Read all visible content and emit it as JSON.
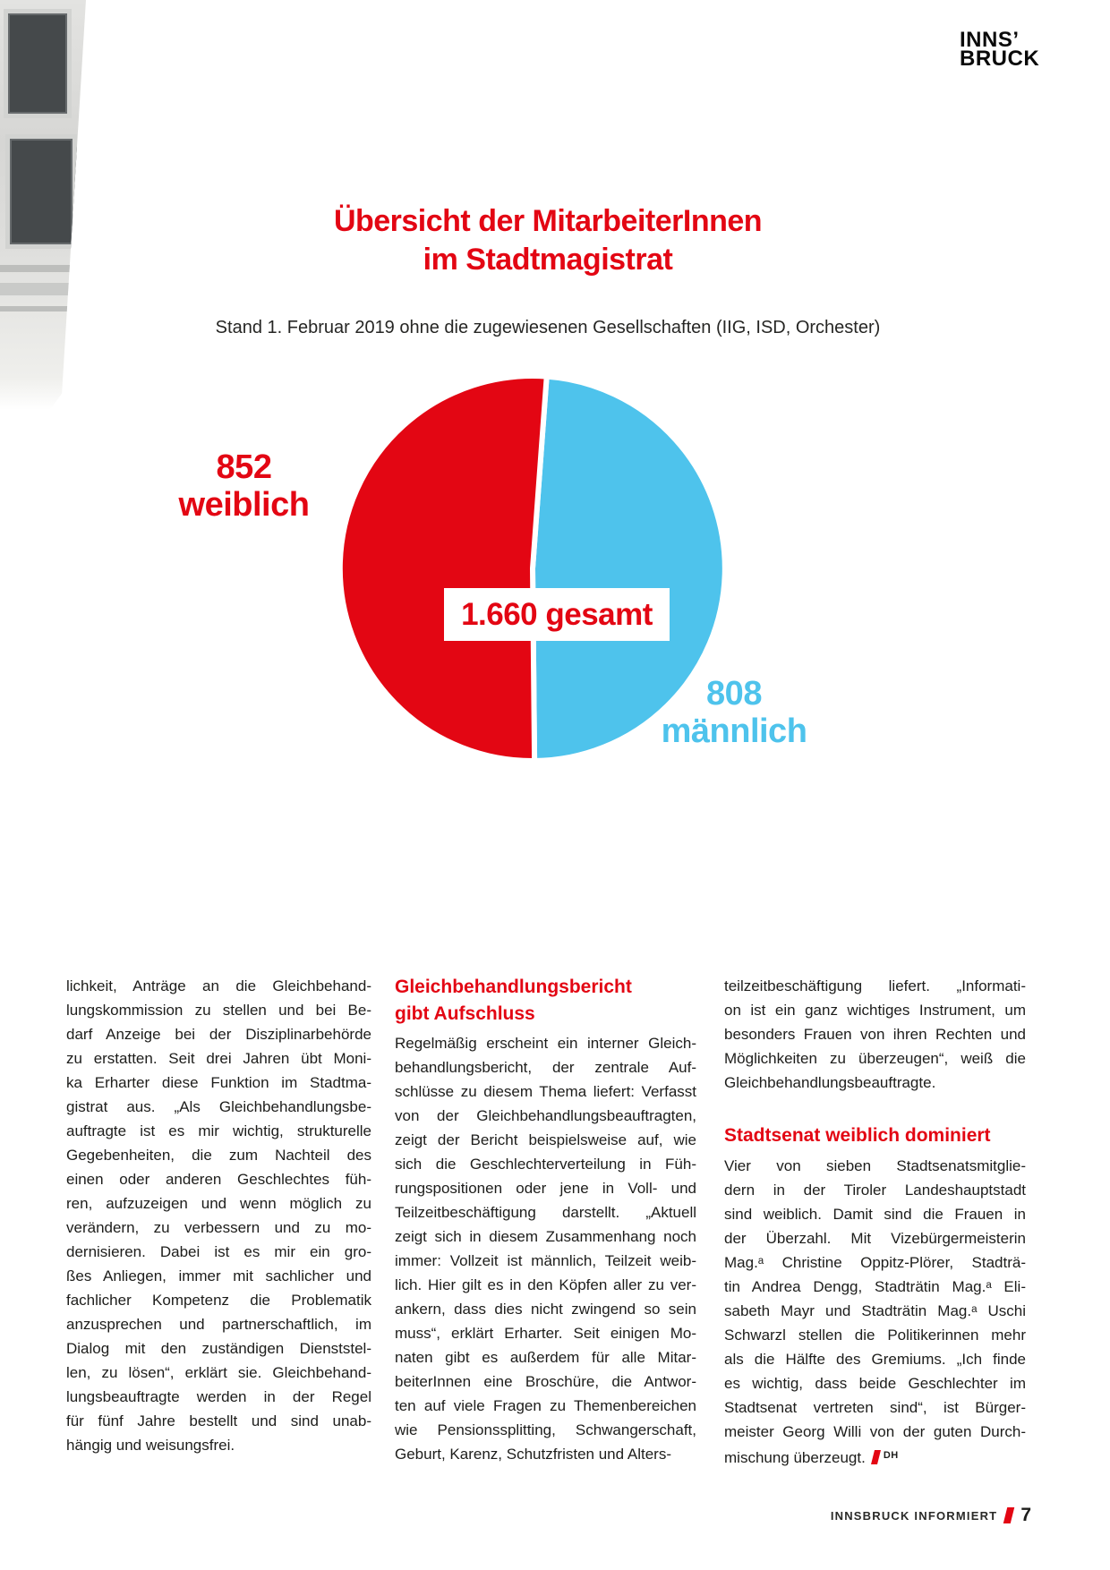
{
  "logo": {
    "line1": "INNS’",
    "line2": "BRUCK"
  },
  "header": {
    "title_line1": "Übersicht der MitarbeiterInnen",
    "title_line2": "im Stadtmagistrat",
    "subtitle": "Stand 1. Februar 2019 ohne die zugewiesenen Gesellschaften (IIG, ISD, Orchester)"
  },
  "chart_data": {
    "type": "pie",
    "title": "Übersicht der MitarbeiterInnen im Stadtmagistrat",
    "subtitle": "Stand 1. Februar 2019 ohne die zugewiesenen Gesellschaften (IIG, ISD, Orchester)",
    "slices": [
      {
        "label": "weiblich",
        "value": 852,
        "color": "#e30613"
      },
      {
        "label": "männlich",
        "value": 808,
        "color": "#4ec3ec"
      }
    ],
    "total": 1660,
    "total_label": "1.660 gesamt",
    "legend_position": "labels-beside-slices",
    "start_angle_deg": 4.2
  },
  "pie_labels": {
    "left_value": "852",
    "left_label": "weiblich",
    "right_value": "808",
    "right_label": "männlich",
    "center": "1.660 gesamt"
  },
  "columns": [
    {
      "blocks": [
        {
          "type": "para",
          "lines": [
            "lichkeit, Anträge an die Gleichbehand-",
            "lungskommission zu stellen und bei Be-",
            "darf Anzeige bei der Disziplinarbehörde",
            "zu erstatten. Seit drei Jahren übt Moni-",
            "ka Erharter diese Funktion im Stadtma-",
            "gistrat aus. „Als Gleichbehandlungsbe-",
            "auftragte ist es mir wichtig, strukturelle",
            "Gegebenheiten, die zum Nachteil des",
            "einen oder anderen Geschlechtes füh-",
            "ren, aufzuzeigen und wenn möglich zu",
            "verändern, zu verbessern und zu mo-",
            "dernisieren. Dabei ist es mir ein gro-",
            "ßes Anliegen, immer mit sachlicher und",
            "fachlicher Kompetenz die Problematik",
            "anzusprechen und partnerschaftlich, im",
            "Dialog mit den zuständigen Dienststel-",
            "len, zu lösen“, erklärt sie. Gleichbehand-",
            "lungsbeauftragte werden in der Regel",
            "für fünf Jahre bestellt und sind unab-",
            "hängig und weisungsfrei."
          ]
        }
      ]
    },
    {
      "blocks": [
        {
          "type": "heading",
          "lines": [
            "Gleichbehandlungsbericht",
            "gibt Aufschluss"
          ]
        },
        {
          "type": "para",
          "lines": [
            "Regelmäßig erscheint ein interner Gleich-",
            "behandlungsbericht, der zentrale Auf-",
            "schlüsse zu diesem Thema liefert: Verfasst",
            "von der Gleichbehandlungsbeauftragten,",
            "zeigt der Bericht beispielsweise auf, wie",
            "sich die Geschlechterverteilung in Füh-",
            "rungspositionen oder jene in Voll- und",
            "Teilzeitbeschäftigung darstellt. „Aktuell",
            "zeigt sich in diesem Zusammenhang noch",
            "immer: Vollzeit ist männlich, Teilzeit weib-",
            "lich. Hier gilt es in den Köpfen aller zu ver-",
            "ankern, dass dies nicht zwingend so sein",
            "muss“, erklärt Erharter. Seit einigen Mo-",
            "naten gibt es außerdem für alle Mitar-",
            "beiterInnen eine Broschüre, die Antwor-",
            "ten auf viele Fragen zu Themenbereichen",
            "wie Pensionssplitting, Schwangerschaft,",
            "Geburt, Karenz, Schutzfristen und Alters-"
          ]
        }
      ]
    },
    {
      "blocks": [
        {
          "type": "para",
          "lines": [
            "teilzeitbeschäftigung liefert. „Informati-",
            "on ist ein ganz wichtiges Instrument, um",
            "besonders Frauen von ihren Rechten und",
            "Möglichkeiten zu überzeugen“, weiß die",
            "Gleichbehandlungsbeauftragte."
          ]
        },
        {
          "type": "heading",
          "lines": [
            "Stadtsenat weiblich dominiert"
          ]
        },
        {
          "type": "para",
          "signature": "DH",
          "lines": [
            "Vier von sieben Stadtsenatsmitglie-",
            "dern in der Tiroler Landeshauptstadt",
            "sind weiblich. Damit sind die Frauen in",
            "der Überzahl. Mit Vizebürgermeisterin",
            "Mag.ᵃ Christine Oppitz-Plörer, Stadträ-",
            "tin Andrea Dengg, Stadträtin Mag.ᵃ Eli-",
            "sabeth Mayr und Stadträtin Mag.ᵃ Uschi",
            "Schwarzl stellen die Politikerinnen mehr",
            "als die Hälfte des Gremiums. „Ich finde",
            "es wichtig, dass beide Geschlechter im",
            "Stadtsenat vertreten sind“, ist Bürger-",
            "meister Georg Willi von der guten Durch-",
            "mischung überzeugt."
          ]
        }
      ]
    }
  ],
  "footer": {
    "magazine": "INNSBRUCK INFORMIERT",
    "page": "7"
  },
  "colors": {
    "red": "#e30613",
    "blue": "#4ec3ec",
    "text": "#1d1d1b",
    "logo_black": "#0a0a0a"
  }
}
